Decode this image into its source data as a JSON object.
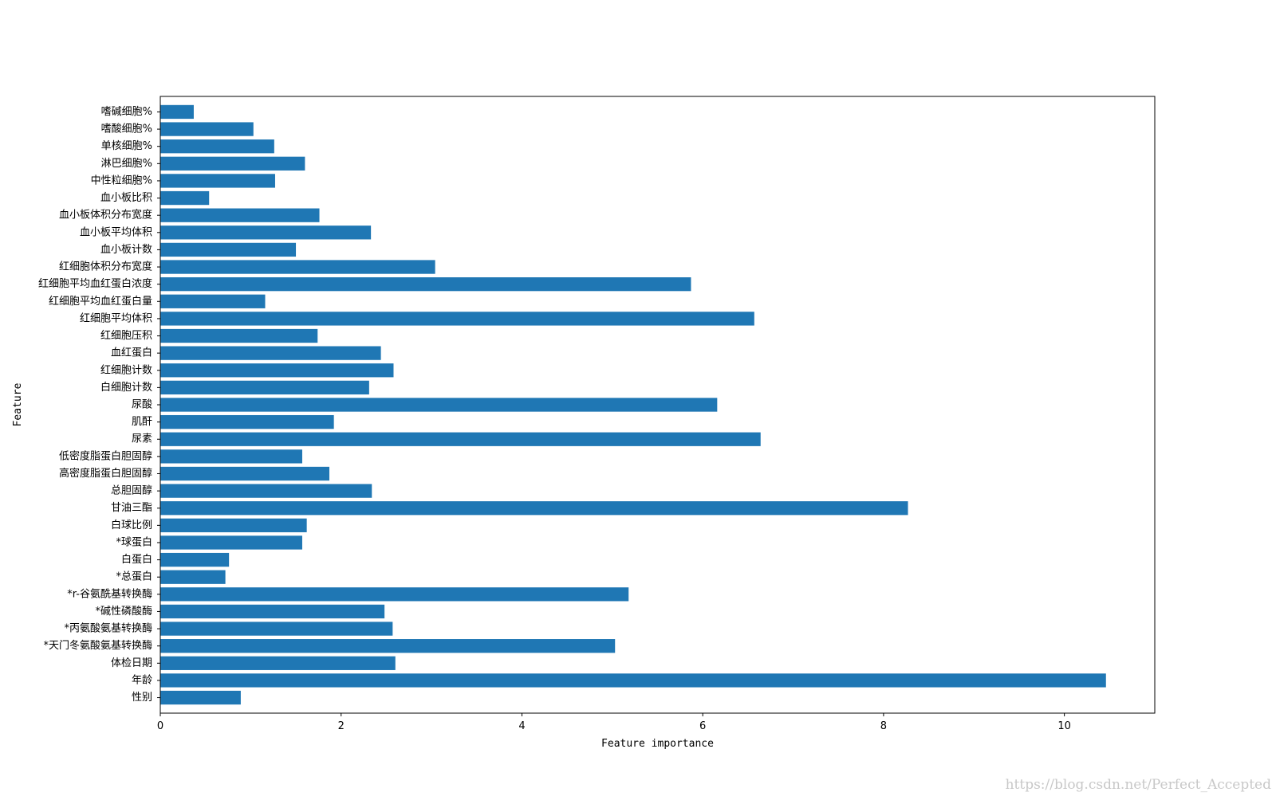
{
  "chart_data": {
    "type": "bar",
    "orientation": "horizontal",
    "title": "",
    "xlabel": "Feature importance",
    "ylabel": "Feature",
    "xlim": [
      0,
      11
    ],
    "xticks": [
      0,
      2,
      4,
      6,
      8,
      10
    ],
    "grid": false,
    "bar_color": "#1f77b4",
    "categories": [
      "性别",
      "年龄",
      "体检日期",
      "*天门冬氨酸氨基转换酶",
      "*丙氨酸氨基转换酶",
      "*碱性磷酸酶",
      "*r-谷氨酰基转换酶",
      "*总蛋白",
      "白蛋白",
      "*球蛋白",
      "白球比例",
      "甘油三酯",
      "总胆固醇",
      "高密度脂蛋白胆固醇",
      "低密度脂蛋白胆固醇",
      "尿素",
      "肌酐",
      "尿酸",
      "白细胞计数",
      "红细胞计数",
      "血红蛋白",
      "红细胞压积",
      "红细胞平均体积",
      "红细胞平均血红蛋白量",
      "红细胞平均血红蛋白浓度",
      "红细胞体积分布宽度",
      "血小板计数",
      "血小板平均体积",
      "血小板体积分布宽度",
      "血小板比积",
      "中性粒细胞%",
      "淋巴细胞%",
      "单核细胞%",
      "嗜酸细胞%",
      "嗜碱细胞%"
    ],
    "values": [
      0.89,
      10.46,
      2.6,
      5.03,
      2.57,
      2.48,
      5.18,
      0.72,
      0.76,
      1.57,
      1.62,
      8.27,
      2.34,
      1.87,
      1.57,
      6.64,
      1.92,
      6.16,
      2.31,
      2.58,
      2.44,
      1.74,
      6.57,
      1.16,
      5.87,
      3.04,
      1.5,
      2.33,
      1.76,
      0.54,
      1.27,
      1.6,
      1.26,
      1.03,
      0.37
    ]
  },
  "watermark": "https://blog.csdn.net/Perfect_Accepted"
}
